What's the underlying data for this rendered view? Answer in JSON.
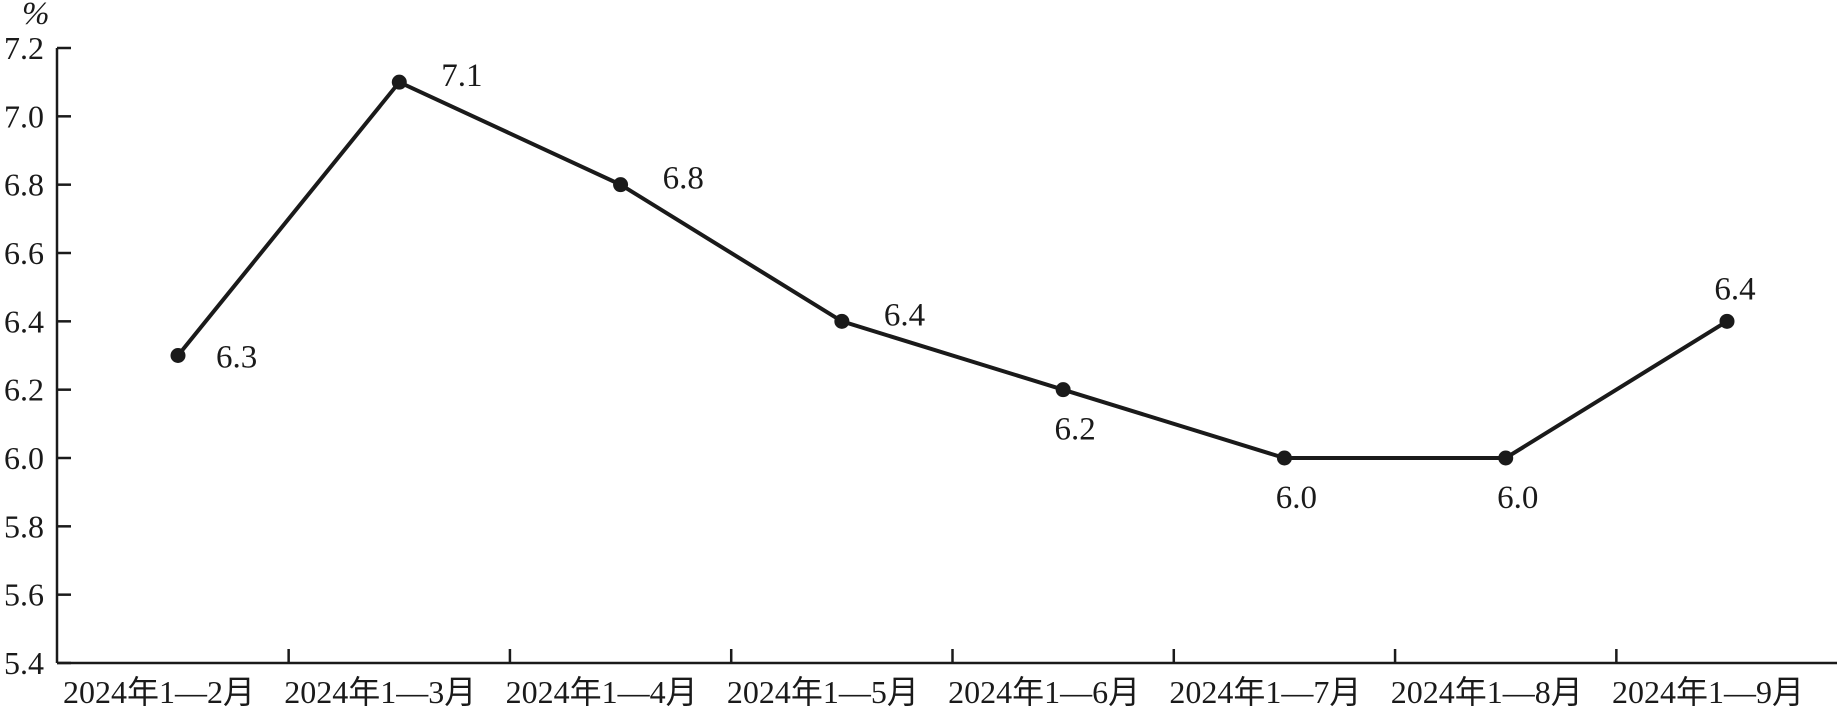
{
  "chart_data": {
    "type": "line",
    "title": "",
    "xlabel": "",
    "ylabel": "%",
    "categories": [
      "2024年1—2月",
      "2024年1—3月",
      "2024年1—4月",
      "2024年1—5月",
      "2024年1—6月",
      "2024年1—7月",
      "2024年1—8月",
      "2024年1—9月"
    ],
    "series": [
      {
        "name": "value",
        "values": [
          6.3,
          7.1,
          6.8,
          6.4,
          6.2,
          6.0,
          6.0,
          6.4
        ],
        "point_labels": [
          "6.3",
          "7.1",
          "6.8",
          "6.4",
          "6.2",
          "6.0",
          "6.0",
          "6.4"
        ],
        "label_positions": [
          "right",
          "right-up",
          "right-up",
          "right-up",
          "below",
          "below",
          "below",
          "above"
        ]
      }
    ],
    "ylim": [
      5.4,
      7.2
    ],
    "ytick_step": 0.2,
    "ytick_labels": [
      "5.4",
      "5.6",
      "5.8",
      "6.0",
      "6.2",
      "6.4",
      "6.6",
      "6.8",
      "7.0",
      "7.2"
    ],
    "grid": false,
    "legend_position": "none",
    "line_color": "#1a1a1a",
    "marker": "circle"
  }
}
